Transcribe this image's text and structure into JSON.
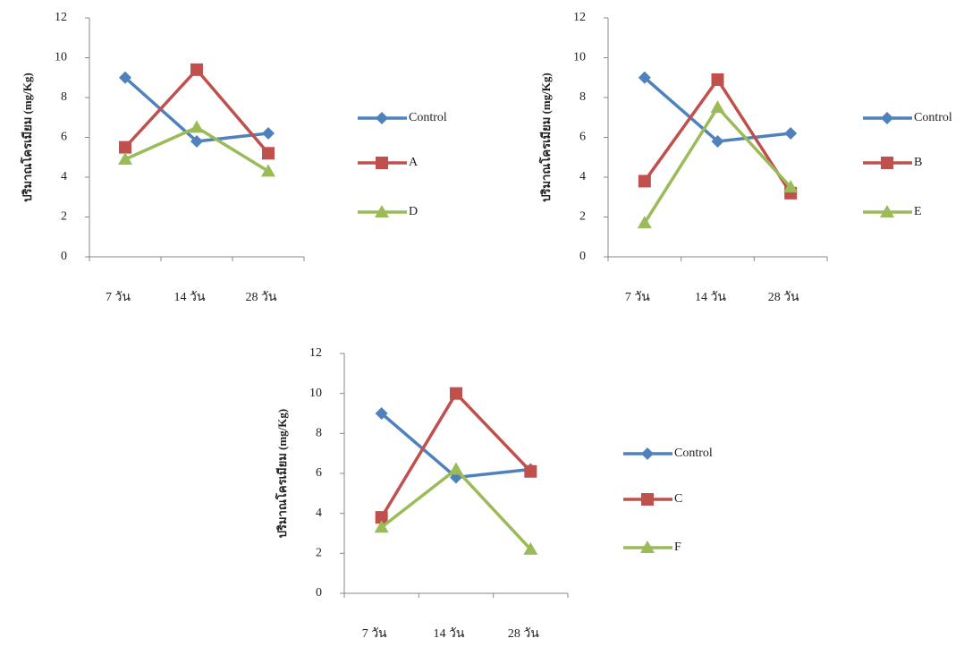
{
  "chart_data": [
    {
      "type": "line",
      "ylabel": "ปริมาณโครเมียม (mg/Kg)",
      "categories": [
        "7 วัน",
        "14 วัน",
        "28 วัน"
      ],
      "ylim": [
        0,
        12
      ],
      "yticks": [
        0,
        2,
        4,
        6,
        8,
        10,
        12
      ],
      "series": [
        {
          "name": "Control",
          "color": "#4f81bd",
          "marker": "diamond",
          "values": [
            9.0,
            5.8,
            6.2
          ]
        },
        {
          "name": "A",
          "color": "#c0504d",
          "marker": "square",
          "values": [
            5.5,
            9.4,
            5.2
          ]
        },
        {
          "name": "D",
          "color": "#9bbb59",
          "marker": "triangle",
          "values": [
            4.9,
            6.5,
            4.3
          ]
        }
      ]
    },
    {
      "type": "line",
      "ylabel": "ปริมาณโครเมียม (mg/Kg)",
      "categories": [
        "7 วัน",
        "14 วัน",
        "28 วัน"
      ],
      "ylim": [
        0,
        12
      ],
      "yticks": [
        0,
        2,
        4,
        6,
        8,
        10,
        12
      ],
      "series": [
        {
          "name": "Control",
          "color": "#4f81bd",
          "marker": "diamond",
          "values": [
            9.0,
            5.8,
            6.2
          ]
        },
        {
          "name": "B",
          "color": "#c0504d",
          "marker": "square",
          "values": [
            3.8,
            8.9,
            3.2
          ]
        },
        {
          "name": "E",
          "color": "#9bbb59",
          "marker": "triangle",
          "values": [
            1.7,
            7.5,
            3.5
          ]
        }
      ]
    },
    {
      "type": "line",
      "ylabel": "ปริมาณโครเมียม (mg/Kg)",
      "categories": [
        "7 วัน",
        "14 วัน",
        "28 วัน"
      ],
      "ylim": [
        0,
        12
      ],
      "yticks": [
        0,
        2,
        4,
        6,
        8,
        10,
        12
      ],
      "series": [
        {
          "name": "Control",
          "color": "#4f81bd",
          "marker": "diamond",
          "values": [
            9.0,
            5.8,
            6.2
          ]
        },
        {
          "name": "C",
          "color": "#c0504d",
          "marker": "square",
          "values": [
            3.8,
            10.0,
            6.1
          ]
        },
        {
          "name": "F",
          "color": "#9bbb59",
          "marker": "triangle",
          "values": [
            3.3,
            6.2,
            2.2
          ]
        }
      ]
    }
  ]
}
